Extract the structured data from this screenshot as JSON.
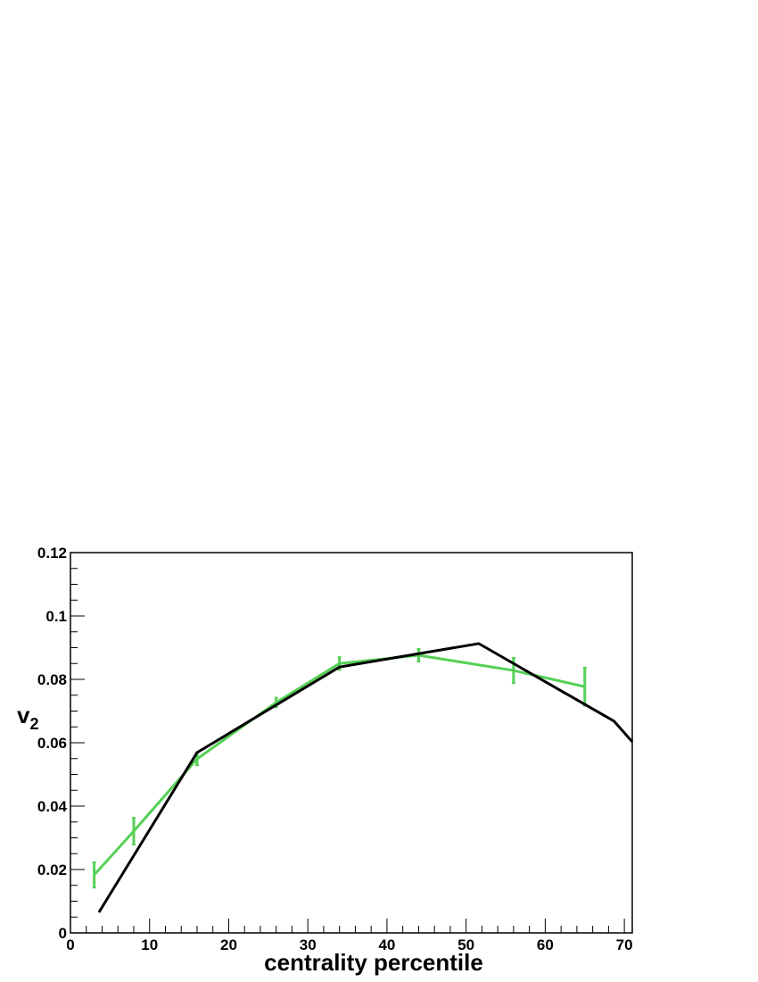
{
  "chart_data": {
    "type": "line",
    "xlabel": "centrality percentile",
    "ylabel": "v",
    "ylabel_subscript": "2",
    "xlim": [
      0,
      71
    ],
    "ylim": [
      0,
      0.12
    ],
    "xticks": [
      0,
      10,
      20,
      30,
      40,
      50,
      60,
      70
    ],
    "yticks": [
      0,
      0.02,
      0.04,
      0.06,
      0.08,
      0.1,
      0.12
    ],
    "series": [
      {
        "color": "#55d055",
        "x": [
          3,
          8,
          16,
          26,
          34,
          44,
          56,
          65
        ],
        "values": [
          0.0183,
          0.0321,
          0.0549,
          0.0727,
          0.085,
          0.0876,
          0.0828,
          0.0777
        ],
        "errors": [
          0.004,
          0.0042,
          0.002,
          0.0015,
          0.002,
          0.002,
          0.004,
          0.006
        ]
      },
      {
        "color": "#000000",
        "x": [
          3.6,
          16,
          34,
          51.6,
          68.7,
          71
        ],
        "values": [
          0.0065,
          0.0569,
          0.0839,
          0.0913,
          0.0668,
          0.0603
        ]
      }
    ]
  }
}
